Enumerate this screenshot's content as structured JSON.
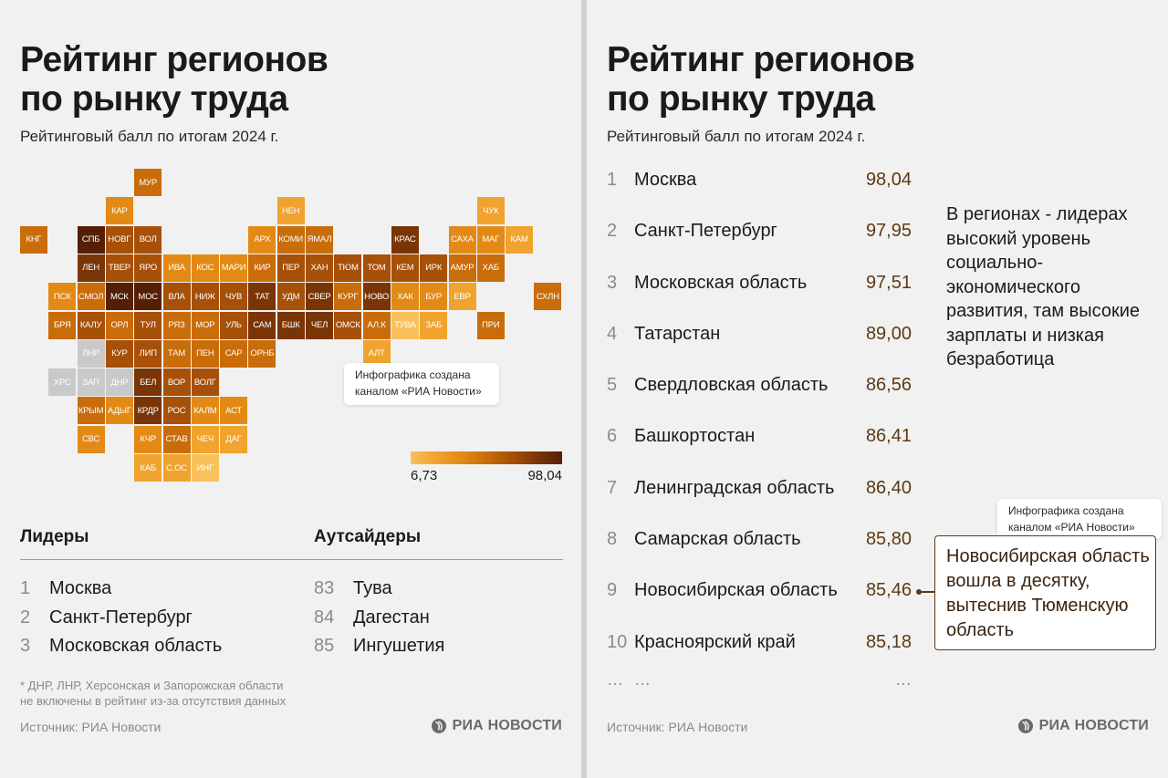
{
  "colors": {
    "scale": [
      "#f8c15b",
      "#f0a32e",
      "#e38a16",
      "#c96c0a",
      "#a75008",
      "#7a3507",
      "#551f05"
    ],
    "no_data": "#c9c9c9",
    "accent": "#5c3a12"
  },
  "left": {
    "title": "Рейтинг регионов\nпо рынку труда",
    "subtitle": "Рейтинговый балл по итогам 2024 г.",
    "map_note": "Инфографика создана каналом «РИА Новости»",
    "legend": {
      "min_label": "6,73",
      "max_label": "98,04"
    },
    "leaders": {
      "heading": "Лидеры",
      "items": [
        {
          "num": "1",
          "name": "Москва"
        },
        {
          "num": "2",
          "name": "Санкт-Петербург"
        },
        {
          "num": "3",
          "name": "Московская область"
        }
      ]
    },
    "outsiders": {
      "heading": "Аутсайдеры",
      "items": [
        {
          "num": "83",
          "name": "Тува"
        },
        {
          "num": "84",
          "name": "Дагестан"
        },
        {
          "num": "85",
          "name": "Ингушетия"
        }
      ]
    },
    "footnote": "* ДНР, ЛНР, Херсонская и Запорожская области\nне включены в рейтинг из-за отсутствия данных",
    "source": "Источник: РИА Новости",
    "logo_text": "РИА НОВОСТИ"
  },
  "right": {
    "title": "Рейтинг регионов\nпо рынку труда",
    "subtitle": "Рейтинговый балл по итогам 2024 г.",
    "side_text": "В регионах - лидерах высокий уровень социально-экономического развития, там высокие зарплаты и низкая безработица",
    "note": "Инфографика создана каналом «РИА Новости»",
    "callout": "Новосибирская область вошла в десятку, вытеснив Тюменскую область",
    "more": {
      "num": "…",
      "name": "…",
      "score": "…"
    },
    "source": "Источник: РИА Новости",
    "logo_text": "РИА НОВОСТИ"
  },
  "chart_data": {
    "type": "table",
    "title": "Рейтинг регионов по рынку труда",
    "subtitle": "Рейтинговый балл по итогам 2024 г.",
    "scale_range": [
      6.73,
      98.04
    ],
    "top10": [
      {
        "rank": "1",
        "name": "Москва",
        "score": "98,04"
      },
      {
        "rank": "2",
        "name": "Санкт-Петербург",
        "score": "97,95"
      },
      {
        "rank": "3",
        "name": "Московская область",
        "score": "97,51"
      },
      {
        "rank": "4",
        "name": "Татарстан",
        "score": "89,00"
      },
      {
        "rank": "5",
        "name": "Свердловская область",
        "score": "86,56"
      },
      {
        "rank": "6",
        "name": "Башкортостан",
        "score": "86,41"
      },
      {
        "rank": "7",
        "name": "Ленинградская область",
        "score": "86,40"
      },
      {
        "rank": "8",
        "name": "Самарская область",
        "score": "85,80"
      },
      {
        "rank": "9",
        "name": "Новосибирская область",
        "score": "85,46"
      },
      {
        "rank": "10",
        "name": "Красноярский край",
        "score": "85,18"
      }
    ],
    "tiles": [
      {
        "label": "МУР",
        "row": 0,
        "col": 4,
        "level": 3
      },
      {
        "label": "КАР",
        "row": 1,
        "col": 3,
        "level": 2
      },
      {
        "label": "НЕН",
        "row": 1,
        "col": 9,
        "level": 1
      },
      {
        "label": "ЧУК",
        "row": 1,
        "col": 16,
        "level": 1
      },
      {
        "label": "КНГ",
        "row": 2,
        "col": 0,
        "level": 3
      },
      {
        "label": "СПБ",
        "row": 2,
        "col": 2,
        "level": 6
      },
      {
        "label": "НОВГ",
        "row": 2,
        "col": 3,
        "level": 4
      },
      {
        "label": "ВОЛ",
        "row": 2,
        "col": 4,
        "level": 4
      },
      {
        "label": "АРХ",
        "row": 2,
        "col": 8,
        "level": 2
      },
      {
        "label": "КОМИ",
        "row": 2,
        "col": 9,
        "level": 3
      },
      {
        "label": "ЯМАЛ",
        "row": 2,
        "col": 10,
        "level": 3
      },
      {
        "label": "КРАС",
        "row": 2,
        "col": 13,
        "level": 5
      },
      {
        "label": "САХА",
        "row": 2,
        "col": 15,
        "level": 2
      },
      {
        "label": "МАГ",
        "row": 2,
        "col": 16,
        "level": 2
      },
      {
        "label": "КАМ",
        "row": 2,
        "col": 17,
        "level": 1
      },
      {
        "label": "ЛЕН",
        "row": 3,
        "col": 2,
        "level": 5
      },
      {
        "label": "ТВЕР",
        "row": 3,
        "col": 3,
        "level": 4
      },
      {
        "label": "ЯРО",
        "row": 3,
        "col": 4,
        "level": 4
      },
      {
        "label": "ИВА",
        "row": 3,
        "col": 5,
        "level": 2
      },
      {
        "label": "КОС",
        "row": 3,
        "col": 6,
        "level": 2
      },
      {
        "label": "МАРИ",
        "row": 3,
        "col": 7,
        "level": 2
      },
      {
        "label": "КИР",
        "row": 3,
        "col": 8,
        "level": 3
      },
      {
        "label": "ПЕР",
        "row": 3,
        "col": 9,
        "level": 4
      },
      {
        "label": "ХАН",
        "row": 3,
        "col": 10,
        "level": 4
      },
      {
        "label": "ТЮМ",
        "row": 3,
        "col": 11,
        "level": 4
      },
      {
        "label": "ТОМ",
        "row": 3,
        "col": 12,
        "level": 4
      },
      {
        "label": "КЕМ",
        "row": 3,
        "col": 13,
        "level": 4
      },
      {
        "label": "ИРК",
        "row": 3,
        "col": 14,
        "level": 4
      },
      {
        "label": "АМУР",
        "row": 3,
        "col": 15,
        "level": 3
      },
      {
        "label": "ХАБ",
        "row": 3,
        "col": 16,
        "level": 3
      },
      {
        "label": "ПСК",
        "row": 4,
        "col": 1,
        "level": 2
      },
      {
        "label": "СМОЛ",
        "row": 4,
        "col": 2,
        "level": 3
      },
      {
        "label": "МСК",
        "row": 4,
        "col": 3,
        "level": 6
      },
      {
        "label": "МОС",
        "row": 4,
        "col": 4,
        "level": 6
      },
      {
        "label": "ВЛА",
        "row": 4,
        "col": 5,
        "level": 4
      },
      {
        "label": "НИЖ",
        "row": 4,
        "col": 6,
        "level": 4
      },
      {
        "label": "ЧУВ",
        "row": 4,
        "col": 7,
        "level": 4
      },
      {
        "label": "ТАТ",
        "row": 4,
        "col": 8,
        "level": 5
      },
      {
        "label": "УДМ",
        "row": 4,
        "col": 9,
        "level": 4
      },
      {
        "label": "СВЕР",
        "row": 4,
        "col": 10,
        "level": 5
      },
      {
        "label": "КУРГ",
        "row": 4,
        "col": 11,
        "level": 3
      },
      {
        "label": "НОВО",
        "row": 4,
        "col": 12,
        "level": 5
      },
      {
        "label": "ХАК",
        "row": 4,
        "col": 13,
        "level": 2
      },
      {
        "label": "БУР",
        "row": 4,
        "col": 14,
        "level": 2
      },
      {
        "label": "ЕВР",
        "row": 4,
        "col": 15,
        "level": 1
      },
      {
        "label": "СХЛН",
        "row": 4,
        "col": 18,
        "level": 3
      },
      {
        "label": "БРЯ",
        "row": 5,
        "col": 1,
        "level": 3
      },
      {
        "label": "КАЛУ",
        "row": 5,
        "col": 2,
        "level": 4
      },
      {
        "label": "ОРЛ",
        "row": 5,
        "col": 3,
        "level": 3
      },
      {
        "label": "ТУЛ",
        "row": 5,
        "col": 4,
        "level": 4
      },
      {
        "label": "РЯЗ",
        "row": 5,
        "col": 5,
        "level": 3
      },
      {
        "label": "МОР",
        "row": 5,
        "col": 6,
        "level": 3
      },
      {
        "label": "УЛЬ",
        "row": 5,
        "col": 7,
        "level": 4
      },
      {
        "label": "САМ",
        "row": 5,
        "col": 8,
        "level": 5
      },
      {
        "label": "БШК",
        "row": 5,
        "col": 9,
        "level": 5
      },
      {
        "label": "ЧЕЛ",
        "row": 5,
        "col": 10,
        "level": 5
      },
      {
        "label": "ОМСК",
        "row": 5,
        "col": 11,
        "level": 4
      },
      {
        "label": "АЛ.К",
        "row": 5,
        "col": 12,
        "level": 3
      },
      {
        "label": "ТУВА",
        "row": 5,
        "col": 13,
        "level": 0
      },
      {
        "label": "ЗАБ",
        "row": 5,
        "col": 14,
        "level": 1
      },
      {
        "label": "ПРИ",
        "row": 5,
        "col": 16,
        "level": 3
      },
      {
        "label": "ЛНР",
        "row": 6,
        "col": 2,
        "level": -1
      },
      {
        "label": "КУР",
        "row": 6,
        "col": 3,
        "level": 4
      },
      {
        "label": "ЛИП",
        "row": 6,
        "col": 4,
        "level": 4
      },
      {
        "label": "ТАМ",
        "row": 6,
        "col": 5,
        "level": 3
      },
      {
        "label": "ПЕН",
        "row": 6,
        "col": 6,
        "level": 3
      },
      {
        "label": "САР",
        "row": 6,
        "col": 7,
        "level": 3
      },
      {
        "label": "ОРНБ",
        "row": 6,
        "col": 8,
        "level": 3
      },
      {
        "label": "АЛТ",
        "row": 6,
        "col": 12,
        "level": 1
      },
      {
        "label": "ХРС",
        "row": 7,
        "col": 1,
        "level": -1
      },
      {
        "label": "ЗАП",
        "row": 7,
        "col": 2,
        "level": -1
      },
      {
        "label": "ДНР",
        "row": 7,
        "col": 3,
        "level": -1
      },
      {
        "label": "БЕЛ",
        "row": 7,
        "col": 4,
        "level": 5
      },
      {
        "label": "ВОР",
        "row": 7,
        "col": 5,
        "level": 4
      },
      {
        "label": "ВОЛГ",
        "row": 7,
        "col": 6,
        "level": 4
      },
      {
        "label": "КРЫМ",
        "row": 8,
        "col": 2,
        "level": 3
      },
      {
        "label": "АДЫГ",
        "row": 8,
        "col": 3,
        "level": 2
      },
      {
        "label": "КРДР",
        "row": 8,
        "col": 4,
        "level": 5
      },
      {
        "label": "РОС",
        "row": 8,
        "col": 5,
        "level": 4
      },
      {
        "label": "КАЛМ",
        "row": 8,
        "col": 6,
        "level": 2
      },
      {
        "label": "АСТ",
        "row": 8,
        "col": 7,
        "level": 2
      },
      {
        "label": "СВС",
        "row": 9,
        "col": 2,
        "level": 2
      },
      {
        "label": "КЧР",
        "row": 9,
        "col": 4,
        "level": 2
      },
      {
        "label": "СТАВ",
        "row": 9,
        "col": 5,
        "level": 3
      },
      {
        "label": "ЧЕЧ",
        "row": 9,
        "col": 6,
        "level": 1
      },
      {
        "label": "ДАГ",
        "row": 9,
        "col": 7,
        "level": 1
      },
      {
        "label": "КАБ",
        "row": 10,
        "col": 4,
        "level": 1
      },
      {
        "label": "С.ОС",
        "row": 10,
        "col": 5,
        "level": 1
      },
      {
        "label": "ИНГ",
        "row": 10,
        "col": 6,
        "level": 0
      }
    ]
  }
}
